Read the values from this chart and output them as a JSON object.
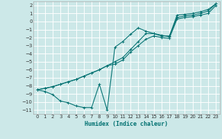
{
  "title": "",
  "xlabel": "Humidex (Indice chaleur)",
  "ylabel": "",
  "bg_color": "#cce8e8",
  "grid_color": "#ffffff",
  "line_color": "#007070",
  "xlim": [
    -0.5,
    23.5
  ],
  "ylim": [
    -11.5,
    2.5
  ],
  "yticks": [
    2,
    1,
    0,
    -1,
    -2,
    -3,
    -4,
    -5,
    -6,
    -7,
    -8,
    -9,
    -10,
    -11
  ],
  "xticks": [
    0,
    1,
    2,
    3,
    4,
    5,
    6,
    7,
    8,
    9,
    10,
    11,
    12,
    13,
    14,
    15,
    16,
    17,
    18,
    19,
    20,
    21,
    22,
    23
  ],
  "line1_x": [
    0,
    1,
    2,
    3,
    4,
    5,
    6,
    7,
    8,
    9,
    10,
    11,
    12,
    13,
    14,
    15,
    16,
    17,
    18,
    19,
    20,
    21,
    22,
    23
  ],
  "line1_y": [
    -8.5,
    -8.7,
    -9.1,
    -9.9,
    -10.1,
    -10.5,
    -10.7,
    -10.7,
    -7.8,
    -11.0,
    -3.2,
    -2.5,
    -1.6,
    -0.8,
    -1.2,
    -1.5,
    -1.7,
    -1.9,
    0.8,
    0.9,
    1.0,
    1.2,
    1.5,
    2.2
  ],
  "line2_x": [
    0,
    1,
    2,
    3,
    4,
    5,
    6,
    7,
    8,
    9,
    10,
    11,
    12,
    13,
    14,
    15,
    16,
    17,
    18,
    19,
    20,
    21,
    22,
    23
  ],
  "line2_y": [
    -8.5,
    -8.3,
    -8.1,
    -7.8,
    -7.5,
    -7.2,
    -6.8,
    -6.4,
    -6.0,
    -5.5,
    -5.0,
    -4.5,
    -3.5,
    -2.5,
    -1.5,
    -1.5,
    -1.8,
    -1.8,
    0.5,
    0.7,
    0.8,
    1.0,
    1.3,
    2.2
  ],
  "line3_x": [
    0,
    1,
    2,
    3,
    4,
    5,
    6,
    7,
    8,
    9,
    10,
    11,
    12,
    13,
    14,
    15,
    16,
    17,
    18,
    19,
    20,
    21,
    22,
    23
  ],
  "line3_y": [
    -8.5,
    -8.3,
    -8.1,
    -7.8,
    -7.5,
    -7.2,
    -6.8,
    -6.4,
    -6.0,
    -5.5,
    -5.3,
    -4.8,
    -3.8,
    -3.0,
    -2.2,
    -1.8,
    -2.0,
    -2.1,
    0.3,
    0.5,
    0.6,
    0.8,
    1.0,
    2.0
  ],
  "tick_fontsize": 5,
  "xlabel_fontsize": 6
}
